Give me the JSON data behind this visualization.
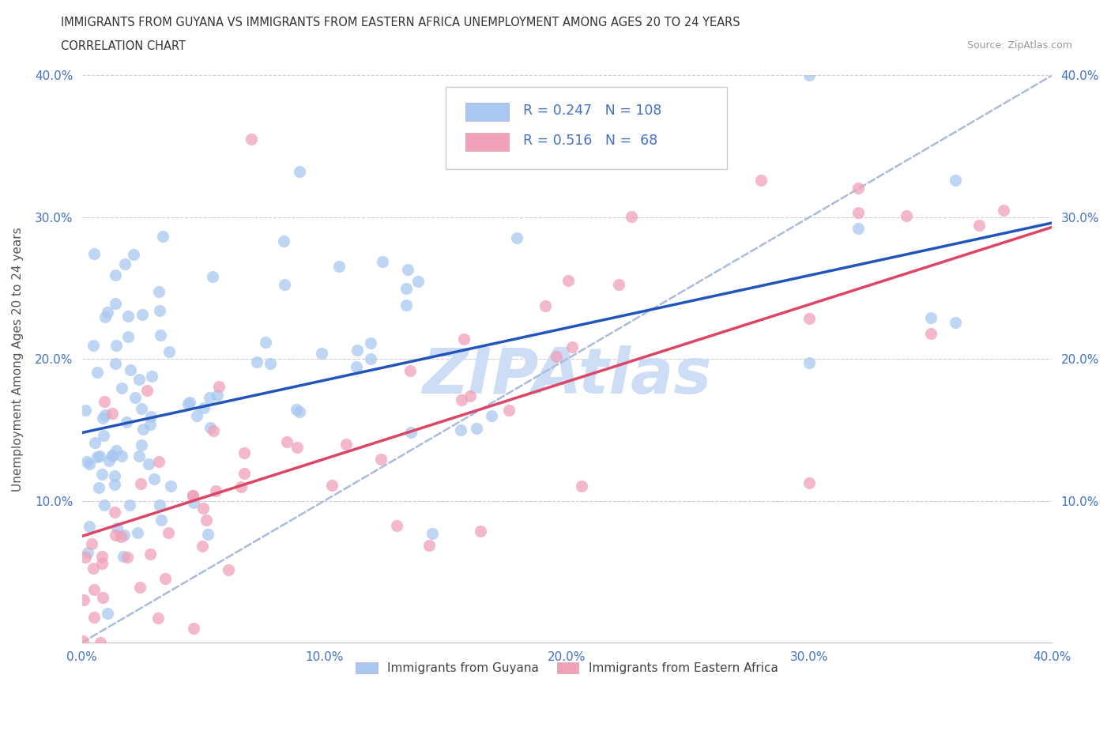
{
  "title_line1": "IMMIGRANTS FROM GUYANA VS IMMIGRANTS FROM EASTERN AFRICA UNEMPLOYMENT AMONG AGES 20 TO 24 YEARS",
  "title_line2": "CORRELATION CHART",
  "source_text": "Source: ZipAtlas.com",
  "ylabel": "Unemployment Among Ages 20 to 24 years",
  "xlim": [
    0.0,
    0.4
  ],
  "ylim": [
    0.0,
    0.4
  ],
  "blue_color": "#a8c8f0",
  "pink_color": "#f0a0b8",
  "blue_line_color": "#2255bb",
  "pink_line_color": "#dd4466",
  "gray_dash_color": "#aabbdd",
  "R_blue": 0.247,
  "N_blue": 108,
  "R_pink": 0.516,
  "N_pink": 68,
  "legend_R_color": "#4472c4",
  "watermark": "ZIPAtlas",
  "watermark_color": "#ccddf5",
  "blue_intercept": 0.148,
  "blue_slope": 0.37,
  "pink_intercept": 0.075,
  "pink_slope": 0.545
}
